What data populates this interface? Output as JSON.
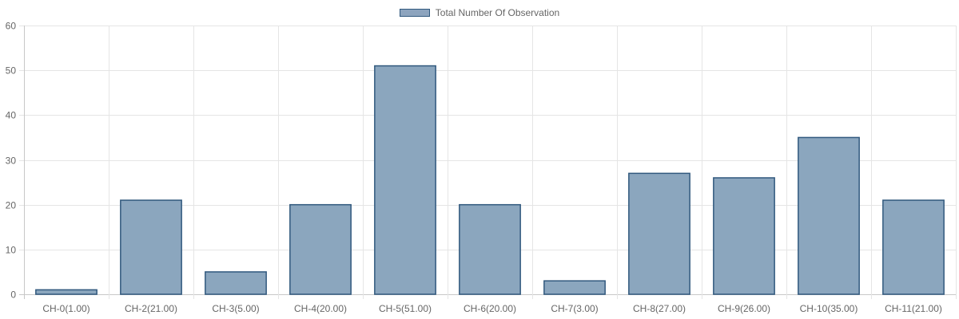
{
  "chart_data": {
    "type": "bar",
    "categories": [
      "CH-0(1.00)",
      "CH-2(21.00)",
      "CH-3(5.00)",
      "CH-4(20.00)",
      "CH-5(51.00)",
      "CH-6(20.00)",
      "CH-7(3.00)",
      "CH-8(27.00)",
      "CH-9(26.00)",
      "CH-10(35.00)",
      "CH-11(21.00)"
    ],
    "series": [
      {
        "name": "Total Number Of Observation",
        "values": [
          1,
          21,
          5,
          20,
          51,
          20,
          3,
          27,
          26,
          35,
          21
        ]
      }
    ],
    "ylim": [
      0,
      60
    ],
    "yticks": [
      0,
      10,
      20,
      30,
      40,
      50,
      60
    ],
    "grid": true,
    "legend_position": "top-center",
    "colors": {
      "bar_fill": "#8ba6be",
      "bar_border": "#31597e",
      "grid": "#e5e5e5",
      "axis": "#c8c8c8",
      "text": "#666666"
    }
  }
}
